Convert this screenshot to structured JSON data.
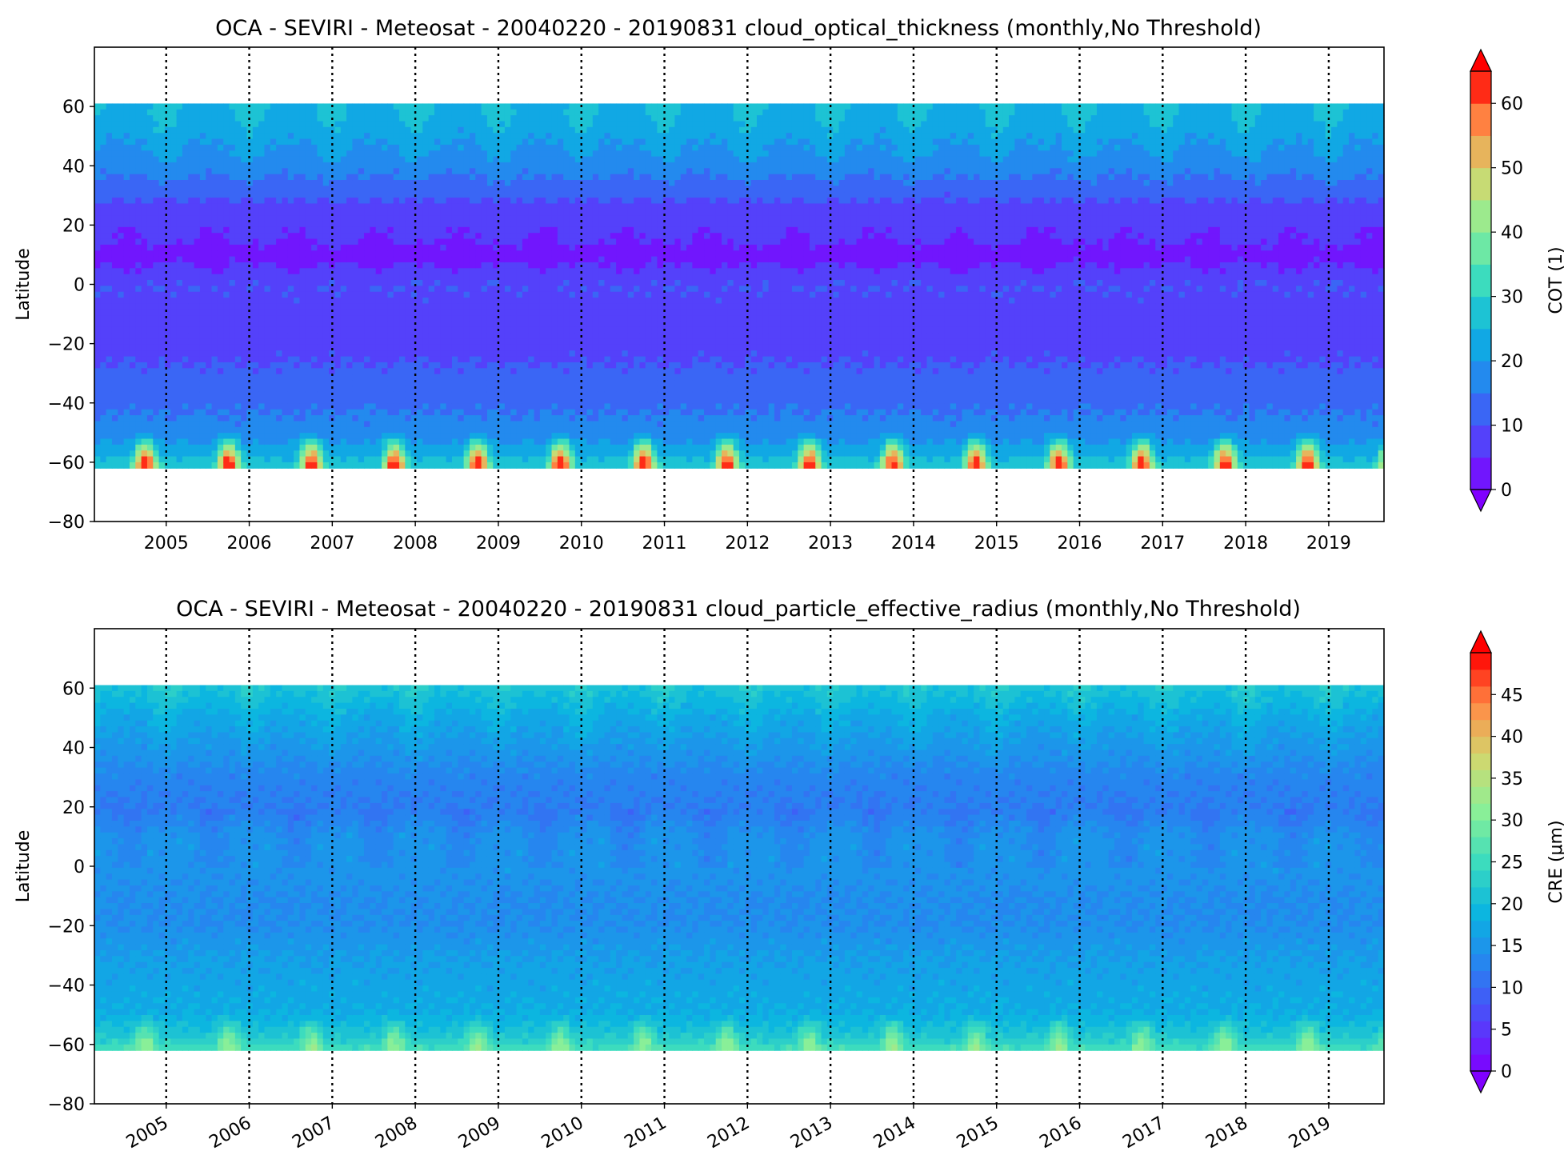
{
  "chart_data": [
    {
      "type": "heatmap",
      "title": "OCA - SEVIRI - Meteosat - 20040220 - 20190831 cloud_optical_thickness (monthly,No Threshold)",
      "xlabel": "",
      "ylabel": "Latitude",
      "x_tick_labels": [
        "2005",
        "2006",
        "2007",
        "2008",
        "2009",
        "2010",
        "2011",
        "2012",
        "2013",
        "2014",
        "2015",
        "2016",
        "2017",
        "2018",
        "2019"
      ],
      "x_tick_rotation": 0,
      "xlim": [
        "2004-02-20",
        "2019-08-31"
      ],
      "ylim": [
        -80,
        80
      ],
      "y_ticks": [
        60,
        40,
        20,
        0,
        -20,
        -40,
        -60,
        -80
      ],
      "y_tick_labels": [
        "60",
        "40",
        "20",
        "0",
        "−20",
        "−40",
        "−60",
        "−80"
      ],
      "data_lat_range": [
        -62,
        61
      ],
      "vertical_dotted_lines_at_years": true,
      "colorbar": {
        "label": "COT (1)",
        "range": [
          0,
          65
        ],
        "ticks": [
          60,
          50,
          40,
          30,
          20,
          10,
          0
        ],
        "tick_labels": [
          "60",
          "50",
          "40",
          "30",
          "20",
          "10",
          "0"
        ],
        "extend": "both",
        "colormap": "rainbow",
        "levels": 13
      },
      "latitude_profile": [
        {
          "lat": 61,
          "value": 24
        },
        {
          "lat": 55,
          "value": 22
        },
        {
          "lat": 45,
          "value": 19
        },
        {
          "lat": 35,
          "value": 14
        },
        {
          "lat": 25,
          "value": 8
        },
        {
          "lat": 15,
          "value": 6
        },
        {
          "lat": 10,
          "value": 3
        },
        {
          "lat": 0,
          "value": 10
        },
        {
          "lat": -10,
          "value": 8
        },
        {
          "lat": -20,
          "value": 8
        },
        {
          "lat": -30,
          "value": 11
        },
        {
          "lat": -40,
          "value": 14
        },
        {
          "lat": -50,
          "value": 17
        },
        {
          "lat": -58,
          "value": 24
        },
        {
          "lat": -62,
          "value": 30
        }
      ],
      "seasonal_maxima": {
        "south_rim_peak": 65,
        "north_rim_peak": 38
      }
    },
    {
      "type": "heatmap",
      "title": "OCA - SEVIRI - Meteosat - 20040220 - 20190831 cloud_particle_effective_radius (monthly,No Threshold)",
      "xlabel": "",
      "ylabel": "Latitude",
      "x_tick_labels": [
        "2005",
        "2006",
        "2007",
        "2008",
        "2009",
        "2010",
        "2011",
        "2012",
        "2013",
        "2014",
        "2015",
        "2016",
        "2017",
        "2018",
        "2019"
      ],
      "x_tick_rotation": -30,
      "xlim": [
        "2004-02-20",
        "2019-08-31"
      ],
      "ylim": [
        -80,
        80
      ],
      "y_ticks": [
        60,
        40,
        20,
        0,
        -20,
        -40,
        -60,
        -80
      ],
      "y_tick_labels": [
        "60",
        "40",
        "20",
        "0",
        "−20",
        "−40",
        "−60",
        "−80"
      ],
      "data_lat_range": [
        -62,
        61
      ],
      "vertical_dotted_lines_at_years": true,
      "colorbar": {
        "label": "CRE (μm)",
        "range": [
          0,
          50
        ],
        "ticks": [
          45,
          40,
          35,
          30,
          25,
          20,
          15,
          10,
          5,
          0
        ],
        "tick_labels": [
          "45",
          "40",
          "35",
          "30",
          "25",
          "20",
          "15",
          "10",
          "5",
          "0"
        ],
        "extend": "both",
        "colormap": "rainbow",
        "levels": 25
      },
      "latitude_profile": [
        {
          "lat": 61,
          "value": 21
        },
        {
          "lat": 50,
          "value": 17
        },
        {
          "lat": 40,
          "value": 15
        },
        {
          "lat": 30,
          "value": 13
        },
        {
          "lat": 20,
          "value": 12
        },
        {
          "lat": 10,
          "value": 15
        },
        {
          "lat": 0,
          "value": 15
        },
        {
          "lat": -10,
          "value": 14
        },
        {
          "lat": -20,
          "value": 14
        },
        {
          "lat": -30,
          "value": 16
        },
        {
          "lat": -40,
          "value": 17
        },
        {
          "lat": -50,
          "value": 18
        },
        {
          "lat": -58,
          "value": 22
        },
        {
          "lat": -62,
          "value": 26
        }
      ],
      "seasonal_maxima": {
        "south_rim_peak": 32,
        "north_rim_peak": 26
      }
    }
  ]
}
